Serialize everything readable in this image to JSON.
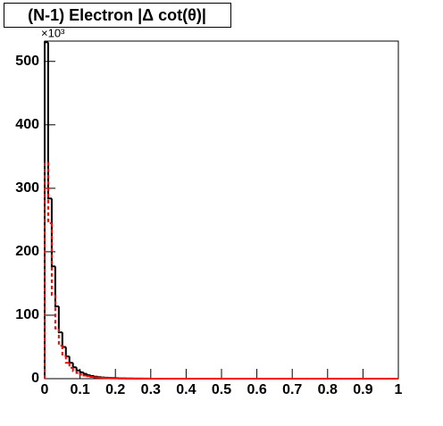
{
  "chart_data": {
    "type": "histogram",
    "title": "(N-1) Electron |Δ cot(θ)|",
    "y_multiplier": "×10³",
    "bins": [
      0,
      0.01,
      0.02,
      0.03,
      0.04,
      0.05,
      0.06,
      0.07,
      0.08,
      0.09,
      0.1,
      0.11,
      0.12,
      0.13,
      0.14,
      0.15,
      0.16,
      0.17,
      0.18,
      0.19,
      0.2,
      0.21,
      0.22,
      0.23,
      0.24,
      0.25,
      0.26,
      0.27,
      0.28,
      0.29,
      0.3,
      0.31,
      0.32,
      0.33,
      0.34,
      0.35,
      0.36,
      0.37,
      0.38,
      0.39,
      0.4,
      0.41,
      0.42,
      0.43,
      0.44,
      0.45,
      0.46,
      0.47,
      0.48,
      0.49,
      0.5,
      0.51,
      0.52,
      0.53,
      0.54,
      0.55,
      0.56,
      0.57,
      0.58,
      0.59,
      0.6,
      0.61,
      0.62,
      0.63,
      0.64,
      0.65,
      0.66,
      0.67,
      0.68,
      0.69,
      0.7,
      0.71,
      0.72,
      0.73,
      0.74,
      0.75,
      0.76,
      0.77,
      0.78,
      0.79,
      0.8,
      0.81,
      0.82,
      0.83,
      0.84,
      0.85,
      0.86,
      0.87,
      0.88,
      0.89,
      0.9,
      0.91,
      0.92,
      0.93,
      0.94,
      0.95,
      0.96,
      0.97,
      0.98,
      0.99,
      1
    ],
    "series": [
      {
        "color": "#000000",
        "dashed": false,
        "values": [
          530,
          284,
          177,
          114,
          73,
          50,
          35,
          25,
          18,
          13,
          10,
          7.5,
          5.5,
          4.2,
          3.2,
          2.5,
          2,
          1.6,
          1.3,
          1,
          0.8,
          0.6,
          0.5,
          0.4,
          0.3,
          0.25,
          0.2,
          0.15,
          0.1,
          0.1,
          0,
          0,
          0,
          0,
          0,
          0,
          0,
          0,
          0,
          0,
          0,
          0,
          0,
          0,
          0,
          0,
          0,
          0,
          0,
          0,
          0,
          0,
          0,
          0,
          0,
          0,
          0,
          0,
          0,
          0,
          0,
          0,
          0,
          0,
          0,
          0,
          0,
          0,
          0,
          0,
          0,
          0,
          0,
          0,
          0,
          0,
          0,
          0,
          0,
          0,
          0,
          0,
          0,
          0,
          0,
          0,
          0,
          0,
          0,
          0,
          0,
          0,
          0,
          0,
          0,
          0,
          0,
          0,
          0,
          0
        ]
      },
      {
        "color": "#ff0000",
        "dashed": true,
        "values": [
          341,
          245,
          132,
          79,
          52,
          36,
          25,
          17,
          12,
          9,
          6.5,
          5,
          3.8,
          2.8,
          2.1,
          1.6,
          1.3,
          1,
          0.8,
          0.6,
          0.5,
          0.4,
          0.3,
          0.25,
          0.2,
          0.15,
          0.1,
          0.1,
          0.05,
          0.05,
          0,
          0,
          0,
          0,
          0,
          0,
          0,
          0,
          0,
          0,
          0,
          0,
          0,
          0,
          0,
          0,
          0,
          0,
          0,
          0,
          0,
          0,
          0,
          0,
          0,
          0,
          0,
          0,
          0,
          0,
          0,
          0,
          0,
          0,
          0,
          0,
          0,
          0,
          0,
          0,
          0,
          0,
          0,
          0,
          0,
          0,
          0,
          0,
          0,
          0,
          0,
          0,
          0,
          0,
          0,
          0,
          0,
          0,
          0,
          0,
          0,
          0,
          0,
          0,
          0,
          0,
          0,
          0,
          0,
          0
        ]
      }
    ],
    "xlim": [
      0,
      1
    ],
    "xticks": [
      0,
      0.1,
      0.2,
      0.3,
      0.4,
      0.5,
      0.6,
      0.7,
      0.8,
      0.9,
      1
    ],
    "ylim": [
      0,
      532
    ],
    "yticks": [
      0,
      100,
      200,
      300,
      400,
      500
    ]
  }
}
